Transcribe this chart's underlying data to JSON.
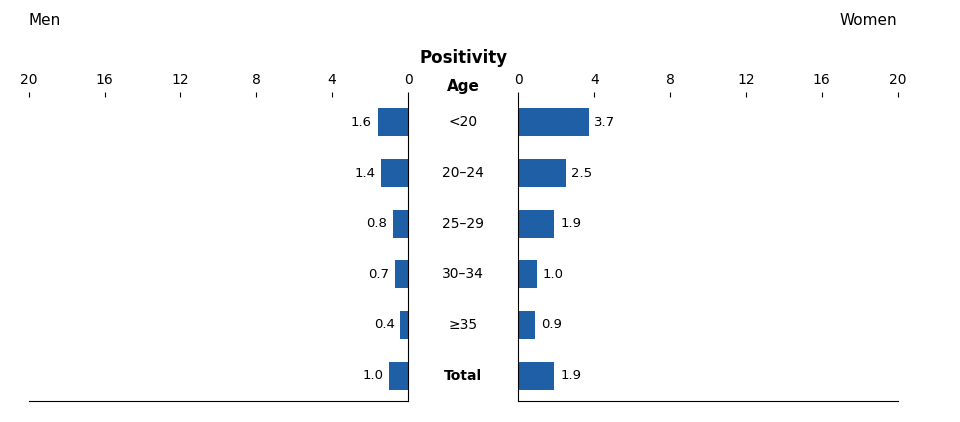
{
  "age_groups": [
    "<20",
    "20–24",
    "25–29",
    "30–34",
    "≥35",
    "Total"
  ],
  "men_values": [
    1.6,
    1.4,
    0.8,
    0.7,
    0.4,
    1.0
  ],
  "women_values": [
    3.7,
    2.5,
    1.9,
    1.0,
    0.9,
    1.9
  ],
  "bar_color": "#1F5FA6",
  "x_max": 20,
  "x_ticks": [
    0,
    4,
    8,
    12,
    16,
    20
  ],
  "title_men": "Men",
  "title_women": "Women",
  "title_center": "Positivity",
  "axis_label_age": "Age",
  "background_color": "#ffffff"
}
